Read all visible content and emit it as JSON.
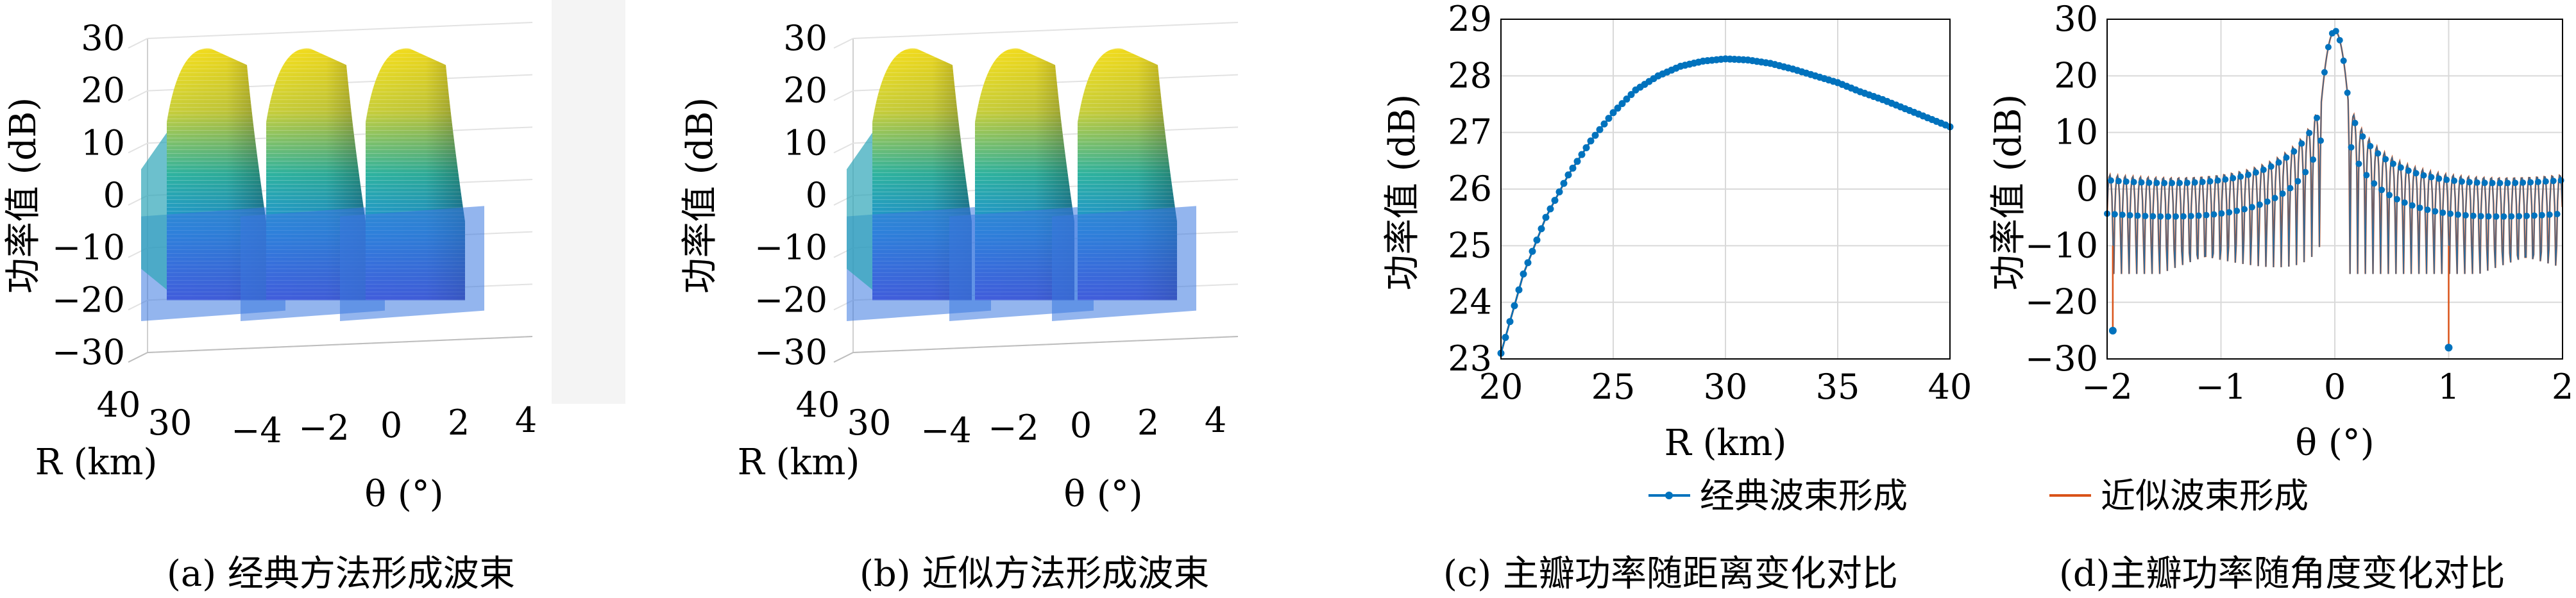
{
  "captions": {
    "a": "(a) 经典方法形成波束",
    "b": "(b) 近似方法形成波束",
    "c": "(c) 主瓣功率随距离变化对比",
    "d": "(d)主瓣功率随角度变化对比"
  },
  "legend": {
    "series1": "经典波束形成",
    "series2": "近似波束形成"
  },
  "colors": {
    "series1": "#0072BD",
    "series2": "#D95319",
    "surface_high": "#F9E21D",
    "surface_mid": "#2EB3A0",
    "surface_low": "#4A3CD6"
  },
  "chart_data": [
    {
      "type": "surface3d",
      "panel": "a",
      "zlabel": "功率值 (dB)",
      "xlabel": "θ (°)",
      "ylabel": "R (km)",
      "ztick_labels": [
        "30",
        "20",
        "10",
        "0",
        "-10",
        "-20",
        "-30"
      ],
      "xtick_labels": [
        "-4",
        "-2",
        "0",
        "2",
        "4"
      ],
      "ytick_labels": [
        "40",
        "30"
      ],
      "zlim": [
        -30,
        30
      ],
      "xlim": [
        -4,
        4
      ],
      "ylim": [
        20,
        40
      ],
      "ridges_theta": [
        -2,
        0,
        2
      ],
      "peak_db": 28
    },
    {
      "type": "surface3d",
      "panel": "b",
      "zlabel": "功率值 (dB)",
      "xlabel": "θ (°)",
      "ylabel": "R (km)",
      "ztick_labels": [
        "30",
        "20",
        "10",
        "0",
        "-10",
        "-20",
        "-30"
      ],
      "xtick_labels": [
        "-4",
        "-2",
        "0",
        "2",
        "4"
      ],
      "ytick_labels": [
        "40",
        "30"
      ],
      "zlim": [
        -30,
        30
      ],
      "xlim": [
        -4,
        4
      ],
      "ylim": [
        20,
        40
      ],
      "ridges_theta": [
        -2,
        0,
        2
      ],
      "peak_db": 28
    },
    {
      "type": "line",
      "panel": "c",
      "xlabel": "R (km)",
      "ylabel": "功率值 (dB)",
      "xlim": [
        20,
        40
      ],
      "ylim": [
        23,
        29
      ],
      "xticks": [
        20,
        25,
        30,
        35,
        40
      ],
      "yticks": [
        23,
        24,
        25,
        26,
        27,
        28,
        29
      ],
      "grid": true,
      "x": [
        20,
        21,
        22,
        23,
        24,
        25,
        26,
        27,
        28,
        29,
        30,
        31,
        32,
        33,
        34,
        35,
        36,
        37,
        38,
        39,
        40
      ],
      "series": [
        {
          "name": "经典波束形成",
          "marker": "dot",
          "values": [
            23.1,
            24.5,
            25.5,
            26.25,
            26.85,
            27.35,
            27.75,
            28.0,
            28.17,
            28.26,
            28.3,
            28.28,
            28.22,
            28.12,
            28.0,
            27.88,
            27.72,
            27.58,
            27.42,
            27.26,
            27.1
          ]
        },
        {
          "name": "近似波束形成",
          "marker": "none",
          "values": [
            23.1,
            24.5,
            25.5,
            26.25,
            26.85,
            27.35,
            27.75,
            28.0,
            28.17,
            28.26,
            28.3,
            28.28,
            28.22,
            28.12,
            28.0,
            27.88,
            27.72,
            27.58,
            27.42,
            27.26,
            27.1
          ]
        }
      ]
    },
    {
      "type": "line",
      "panel": "d",
      "xlabel": "θ (°)",
      "ylabel": "功率值 (dB)",
      "xlim": [
        -2,
        2
      ],
      "ylim": [
        -30,
        30
      ],
      "xticks": [
        -2,
        -1,
        0,
        1,
        2
      ],
      "yticks": [
        -30,
        -20,
        -10,
        0,
        10,
        20,
        30
      ],
      "grid": true,
      "peak": {
        "x": 0,
        "y": 28
      },
      "mainlobe_halfwidth": 0.12,
      "sidelobe_spacing": 0.067,
      "nulls": [
        {
          "x": -1.95,
          "y": -25
        },
        {
          "x": 1.0,
          "y": -28
        }
      ],
      "series": [
        {
          "name": "经典波束形成",
          "marker": "dot"
        },
        {
          "name": "近似波束形成",
          "marker": "none"
        }
      ]
    }
  ]
}
